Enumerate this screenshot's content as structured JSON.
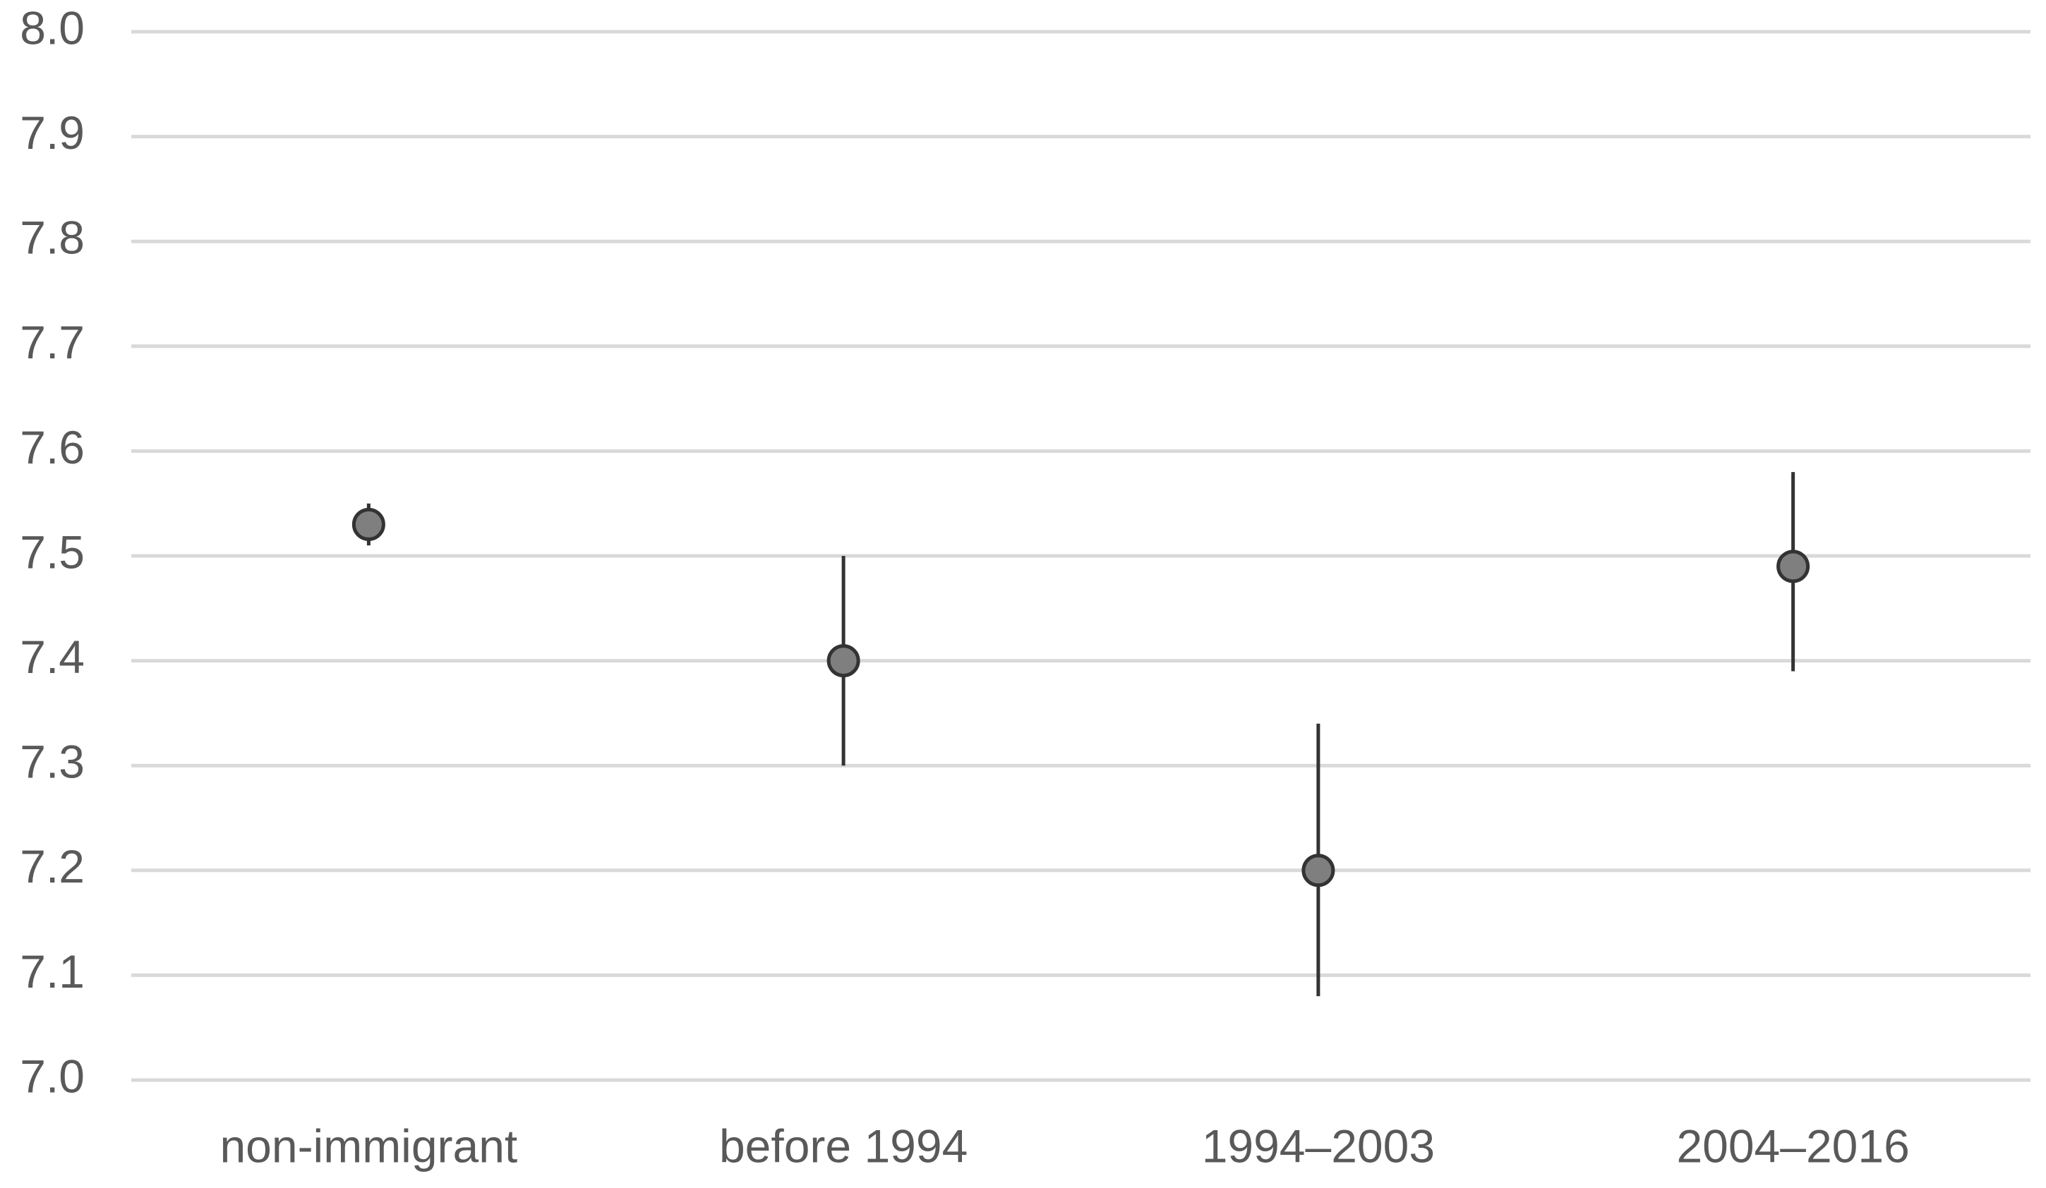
{
  "chart_data": {
    "type": "errorbar",
    "categories": [
      "non-immigrant",
      "before 1994",
      "1994–2003",
      "2004–2016"
    ],
    "values": [
      7.53,
      7.4,
      7.2,
      7.49
    ],
    "lower": [
      7.51,
      7.3,
      7.08,
      7.39
    ],
    "upper": [
      7.55,
      7.5,
      7.34,
      7.58
    ],
    "color": "#7f7f7f",
    "ylim": [
      7.0,
      8.0
    ],
    "yticks": [
      {
        "value": 7.0,
        "label": "7.0"
      },
      7.1,
      7.2,
      7.3,
      7.4,
      7.5,
      7.6,
      7.7,
      7.8,
      7.9,
      {
        "value": 8.0,
        "label": "8.0"
      }
    ],
    "grid": true
  }
}
